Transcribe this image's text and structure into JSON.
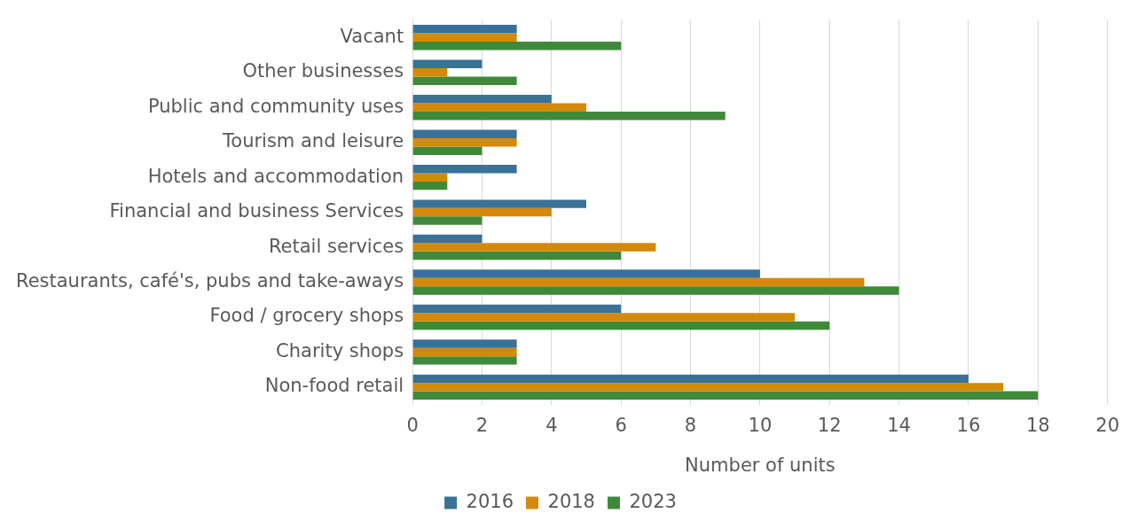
{
  "chart_data": {
    "type": "bar",
    "orientation": "horizontal",
    "xlabel": "Number of units",
    "categories": [
      "Vacant",
      "Other businesses",
      "Public and community uses",
      "Tourism and leisure",
      "Hotels and accommodation",
      "Financial and business Services",
      "Retail services",
      "Restaurants, café's, pubs and take-aways",
      "Food / grocery shops",
      "Charity shops",
      "Non-food retail"
    ],
    "series": [
      {
        "name": "2016",
        "color": "#3a7197",
        "values": [
          3,
          2,
          4,
          3,
          3,
          5,
          2,
          10,
          6,
          3,
          16
        ]
      },
      {
        "name": "2018",
        "color": "#d4890a",
        "values": [
          3,
          1,
          5,
          3,
          1,
          4,
          7,
          13,
          11,
          3,
          17
        ]
      },
      {
        "name": "2023",
        "color": "#3f8a3a",
        "values": [
          6,
          3,
          9,
          2,
          1,
          2,
          6,
          14,
          12,
          3,
          18
        ]
      }
    ],
    "xlim": [
      0,
      20
    ],
    "xticks": [
      0,
      2,
      4,
      6,
      8,
      10,
      12,
      14,
      16,
      18,
      20
    ],
    "grid": "x",
    "legend": "bottom"
  }
}
